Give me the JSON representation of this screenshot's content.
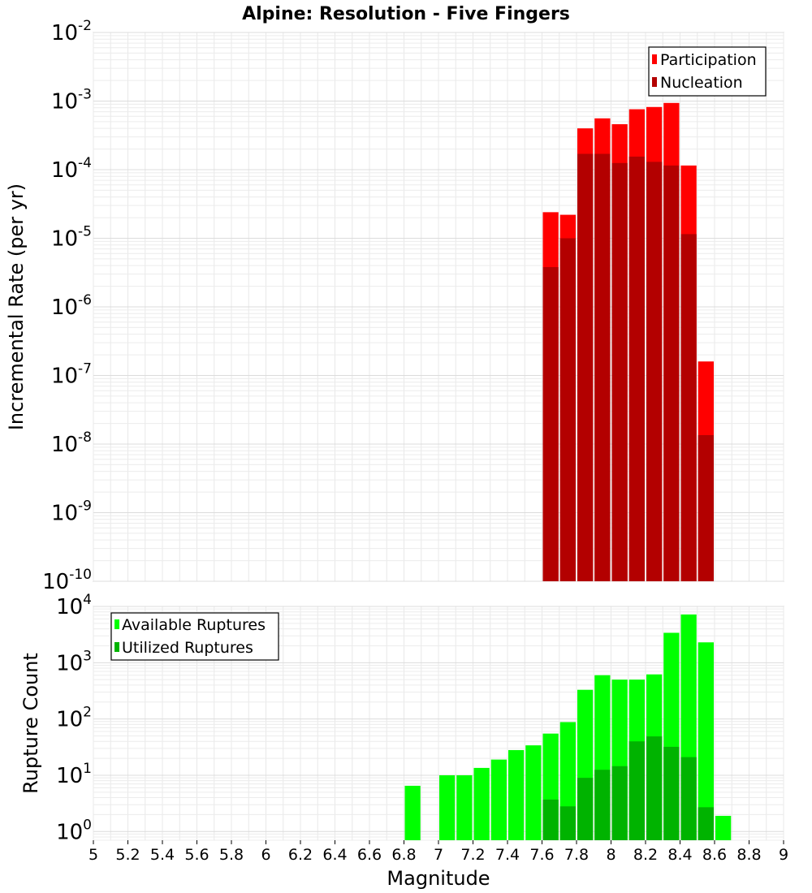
{
  "chart_data": [
    {
      "type": "bar",
      "title": "Alpine: Resolution - Five Fingers",
      "xlabel": "Magnitude",
      "ylabel": "Incremental Rate (per yr)",
      "yscale": "log",
      "xlim": [
        5,
        9
      ],
      "ylim": [
        1e-10,
        0.01
      ],
      "ytick_exponents": [
        -10,
        -9,
        -8,
        -7,
        -6,
        -5,
        -4,
        -3,
        -2
      ],
      "grid": true,
      "legend_position": "top-right",
      "bin_width": 0.1,
      "x": [
        7.65,
        7.75,
        7.85,
        7.95,
        8.05,
        8.15,
        8.25,
        8.35,
        8.45,
        8.55
      ],
      "series": [
        {
          "name": "Participation",
          "color": "#ff0000",
          "values": [
            2.4e-05,
            2.2e-05,
            0.0004,
            0.00056,
            0.00046,
            0.00076,
            0.00082,
            0.00094,
            0.000115,
            1.6e-07
          ]
        },
        {
          "name": "Nucleation",
          "color": "#b30000",
          "values": [
            3.8e-06,
            1e-05,
            0.00017,
            0.00017,
            0.000125,
            0.000155,
            0.00013,
            0.000115,
            1.15e-05,
            1.35e-08
          ]
        }
      ]
    },
    {
      "type": "bar",
      "xlabel": "Magnitude",
      "ylabel": "Rupture Count",
      "yscale": "log",
      "xlim": [
        5,
        9
      ],
      "ylim": [
        0.7,
        10000.0
      ],
      "ytick_exponents": [
        0,
        1,
        2,
        3,
        4
      ],
      "grid": true,
      "legend_position": "top-left",
      "bin_width": 0.1,
      "xticks": [
        "5",
        "5.2",
        "5.4",
        "5.6",
        "5.8",
        "6",
        "6.2",
        "6.4",
        "6.6",
        "6.8",
        "7",
        "7.2",
        "7.4",
        "7.6",
        "7.8",
        "8",
        "8.2",
        "8.4",
        "8.6",
        "8.8",
        "9"
      ],
      "x": [
        6.85,
        7.05,
        7.15,
        7.25,
        7.35,
        7.45,
        7.55,
        7.65,
        7.75,
        7.85,
        7.95,
        8.05,
        8.15,
        8.25,
        8.35,
        8.45,
        8.55,
        8.65
      ],
      "series": [
        {
          "name": "Available Ruptures",
          "color": "#00ff00",
          "values": [
            6.5,
            10,
            10,
            13.5,
            19,
            28,
            34,
            55,
            88,
            330,
            600,
            500,
            500,
            620,
            3400,
            7200,
            2300,
            1.9
          ]
        },
        {
          "name": "Utilized Ruptures",
          "color": "#00b300",
          "values": [
            0,
            0,
            0,
            0,
            0,
            0,
            0,
            3.7,
            2.8,
            9,
            12.5,
            14.5,
            40,
            49,
            32,
            21,
            2.7,
            0
          ]
        }
      ]
    }
  ]
}
